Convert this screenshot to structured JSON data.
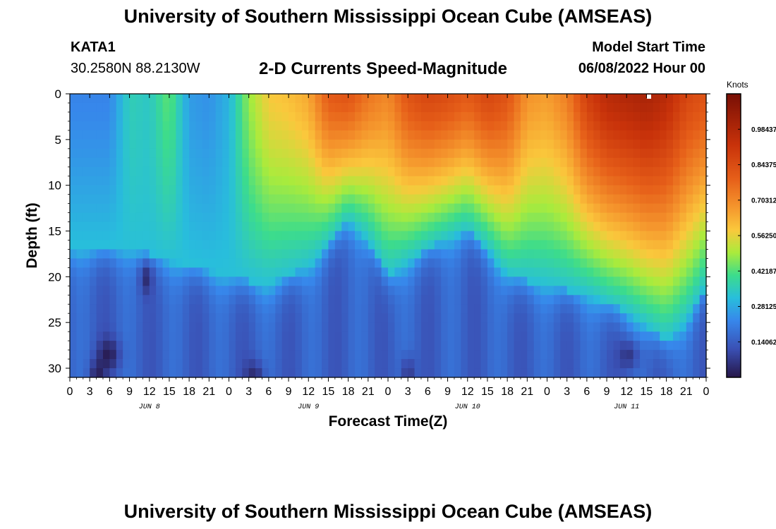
{
  "header": {
    "title": "University of Southern Mississippi Ocean Cube (AMSEAS)",
    "station": "KATA1",
    "coords": "30.2580N  88.2130W",
    "subtitle": "2-D Currents Speed-Magnitude",
    "model_start_label": "Model Start Time",
    "model_start_value": "06/08/2022 Hour 00"
  },
  "footer": {
    "title": "University of Southern Mississippi Ocean Cube (AMSEAS)"
  },
  "chart_data": {
    "type": "heatmap",
    "title": "2-D Currents Speed-Magnitude",
    "xlabel": "Forecast Time(Z)",
    "ylabel": "Depth (ft)",
    "x_range_hours": [
      0,
      96
    ],
    "y_range_ft": [
      0,
      31
    ],
    "x_tick_labels": [
      "0",
      "3",
      "6",
      "9",
      "12",
      "15",
      "18",
      "21",
      "0",
      "3",
      "6",
      "9",
      "12",
      "15",
      "18",
      "21",
      "0",
      "3",
      "6",
      "9",
      "12",
      "15",
      "18",
      "21",
      "0",
      "3",
      "6",
      "9",
      "12",
      "15",
      "18",
      "21",
      "0"
    ],
    "y_ticks": [
      0,
      5,
      10,
      15,
      20,
      25,
      30
    ],
    "date_labels": [
      {
        "text": "JUN 8",
        "hour": 12
      },
      {
        "text": "JUN 9",
        "hour": 36
      },
      {
        "text": "JUN 10",
        "hour": 60
      },
      {
        "text": "JUN 11",
        "hour": 84
      }
    ],
    "colorbar": {
      "unit": "Knots",
      "range": [
        0,
        1.125
      ],
      "tick_labels": [
        "0.14062",
        "0.28125",
        "0.42187",
        "0.56250",
        "0.70312",
        "0.84375",
        "0.98437"
      ],
      "tick_values": [
        0.140625,
        0.28125,
        0.421875,
        0.5625,
        0.703125,
        0.84375,
        0.984375
      ]
    },
    "surface_speed_knots": {
      "hours": [
        0,
        3,
        6,
        9,
        12,
        15,
        18,
        21,
        24,
        27,
        30,
        33,
        36,
        39,
        42,
        45,
        48,
        51,
        54,
        57,
        60,
        63,
        66,
        69,
        72,
        75,
        78,
        81,
        84,
        87,
        90,
        93,
        96
      ],
      "values": [
        0.22,
        0.22,
        0.22,
        0.36,
        0.34,
        0.44,
        0.26,
        0.24,
        0.3,
        0.48,
        0.58,
        0.6,
        0.64,
        0.8,
        0.82,
        0.74,
        0.7,
        0.82,
        0.86,
        0.84,
        0.8,
        0.86,
        0.82,
        0.68,
        0.66,
        0.72,
        0.88,
        0.96,
        0.98,
        1.0,
        0.96,
        0.86,
        0.82
      ]
    },
    "upper_layer_bottom_ft": {
      "hours": [
        0,
        9,
        24,
        30,
        36,
        42,
        45,
        48,
        54,
        60,
        63,
        66,
        72,
        78,
        84,
        90,
        93,
        96
      ],
      "values": [
        17,
        17,
        20,
        21,
        19,
        14,
        16,
        20,
        17,
        15,
        17,
        20,
        21,
        22,
        24,
        27,
        25,
        21
      ]
    }
  }
}
